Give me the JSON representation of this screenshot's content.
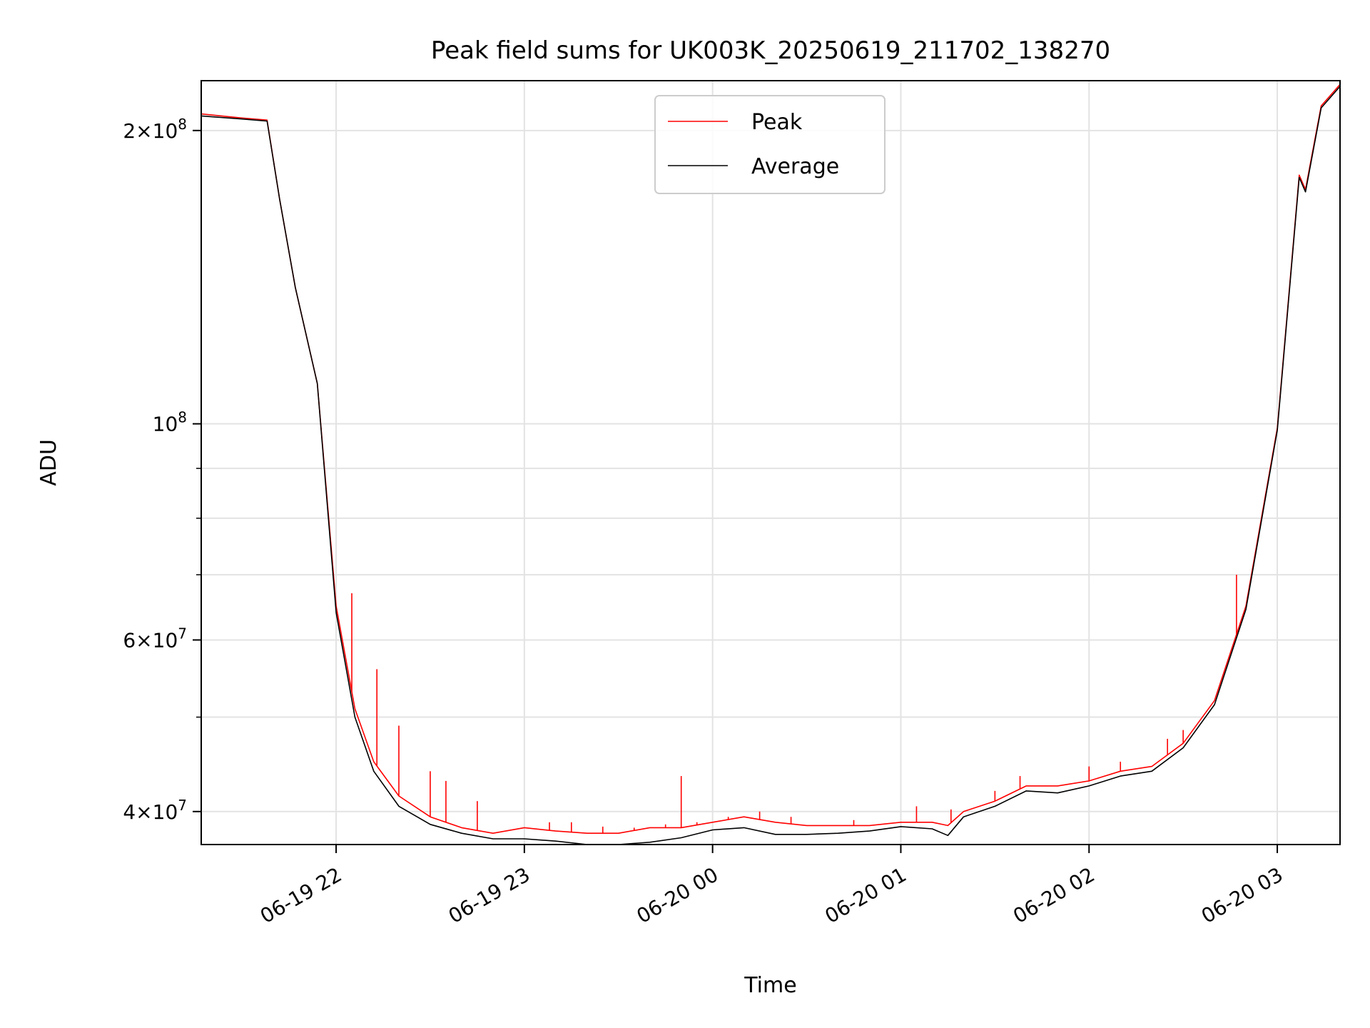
{
  "chart_data": {
    "type": "line",
    "title": "Peak field sums for UK003K_20250619_211702_138270",
    "xlabel": "Time",
    "ylabel": "ADU",
    "yscale": "log",
    "grid": true,
    "legend_position": "top-center",
    "x_ticks": [
      "06-19 22",
      "06-19 23",
      "06-20 00",
      "06-20 01",
      "06-20 02",
      "06-20 03"
    ],
    "x_tick_values": [
      "2025-06-19 22:00",
      "2025-06-19 23:00",
      "2025-06-20 00:00",
      "2025-06-20 01:00",
      "2025-06-20 02:00",
      "2025-06-20 03:00"
    ],
    "xlim": [
      "2025-06-19 21:17",
      "2025-06-20 03:20"
    ],
    "y_ticks": [
      {
        "value": 40000000,
        "mantissa": "4",
        "exp": "7"
      },
      {
        "value": 60000000,
        "mantissa": "6",
        "exp": "7"
      },
      {
        "value": 100000000,
        "mantissa": "",
        "exp": "8"
      },
      {
        "value": 200000000,
        "mantissa": "2",
        "exp": "8"
      }
    ],
    "y_minor_ticks": [
      50000000,
      70000000,
      80000000,
      90000000
    ],
    "ylim": [
      37000000,
      225000000
    ],
    "series": [
      {
        "name": "Peak",
        "color": "#ff0000",
        "x": [
          "2025-06-19 21:17",
          "2025-06-19 21:30",
          "2025-06-19 21:38",
          "2025-06-19 21:42",
          "2025-06-19 21:47",
          "2025-06-19 21:54",
          "2025-06-19 22:00",
          "2025-06-19 22:06",
          "2025-06-19 22:12",
          "2025-06-19 22:20",
          "2025-06-19 22:30",
          "2025-06-19 22:40",
          "2025-06-19 22:50",
          "2025-06-19 23:00",
          "2025-06-19 23:10",
          "2025-06-19 23:20",
          "2025-06-19 23:30",
          "2025-06-19 23:40",
          "2025-06-19 23:50",
          "2025-06-20 00:00",
          "2025-06-20 00:10",
          "2025-06-20 00:20",
          "2025-06-20 00:30",
          "2025-06-20 00:40",
          "2025-06-20 00:50",
          "2025-06-20 01:00",
          "2025-06-20 01:10",
          "2025-06-20 01:15",
          "2025-06-20 01:20",
          "2025-06-20 01:30",
          "2025-06-20 01:40",
          "2025-06-20 01:50",
          "2025-06-20 02:00",
          "2025-06-20 02:10",
          "2025-06-20 02:20",
          "2025-06-20 02:30",
          "2025-06-20 02:40",
          "2025-06-20 02:50",
          "2025-06-20 03:00",
          "2025-06-20 03:07",
          "2025-06-20 03:09",
          "2025-06-20 03:14",
          "2025-06-20 03:20"
        ],
        "values": [
          208000000,
          206000000,
          205000000,
          170000000,
          138000000,
          110000000,
          65000000,
          51000000,
          45000000,
          41500000,
          39500000,
          38500000,
          38000000,
          38500000,
          38200000,
          38000000,
          38000000,
          38500000,
          38500000,
          39000000,
          39500000,
          39000000,
          38700000,
          38700000,
          38700000,
          39000000,
          39000000,
          38700000,
          40000000,
          41000000,
          42500000,
          42500000,
          43000000,
          44000000,
          44500000,
          47000000,
          52000000,
          65000000,
          99000000,
          180000000,
          174000000,
          212000000,
          223000000
        ],
        "spikes": [
          {
            "x": "2025-06-19 22:05",
            "value": 67000000
          },
          {
            "x": "2025-06-19 22:13",
            "value": 56000000
          },
          {
            "x": "2025-06-19 22:20",
            "value": 49000000
          },
          {
            "x": "2025-06-19 22:30",
            "value": 44000000
          },
          {
            "x": "2025-06-19 22:35",
            "value": 43000000
          },
          {
            "x": "2025-06-19 22:45",
            "value": 41000000
          },
          {
            "x": "2025-06-19 23:08",
            "value": 39000000
          },
          {
            "x": "2025-06-19 23:15",
            "value": 39000000
          },
          {
            "x": "2025-06-19 23:25",
            "value": 38600000
          },
          {
            "x": "2025-06-19 23:35",
            "value": 38500000
          },
          {
            "x": "2025-06-19 23:45",
            "value": 38800000
          },
          {
            "x": "2025-06-19 23:50",
            "value": 43500000
          },
          {
            "x": "2025-06-19 23:55",
            "value": 39000000
          },
          {
            "x": "2025-06-20 00:05",
            "value": 39500000
          },
          {
            "x": "2025-06-20 00:15",
            "value": 40000000
          },
          {
            "x": "2025-06-20 00:25",
            "value": 39500000
          },
          {
            "x": "2025-06-20 00:45",
            "value": 39200000
          },
          {
            "x": "2025-06-20 01:05",
            "value": 40500000
          },
          {
            "x": "2025-06-20 01:16",
            "value": 40200000
          },
          {
            "x": "2025-06-20 01:30",
            "value": 42000000
          },
          {
            "x": "2025-06-20 01:38",
            "value": 43500000
          },
          {
            "x": "2025-06-20 02:00",
            "value": 44500000
          },
          {
            "x": "2025-06-20 02:10",
            "value": 45000000
          },
          {
            "x": "2025-06-20 02:25",
            "value": 47500000
          },
          {
            "x": "2025-06-20 02:30",
            "value": 48500000
          },
          {
            "x": "2025-06-20 02:47",
            "value": 70000000
          }
        ]
      },
      {
        "name": "Average",
        "color": "#000000",
        "x": [
          "2025-06-19 21:17",
          "2025-06-19 21:30",
          "2025-06-19 21:38",
          "2025-06-19 21:42",
          "2025-06-19 21:47",
          "2025-06-19 21:54",
          "2025-06-19 22:00",
          "2025-06-19 22:06",
          "2025-06-19 22:12",
          "2025-06-19 22:20",
          "2025-06-19 22:30",
          "2025-06-19 22:40",
          "2025-06-19 22:50",
          "2025-06-19 23:00",
          "2025-06-19 23:10",
          "2025-06-19 23:20",
          "2025-06-19 23:30",
          "2025-06-19 23:40",
          "2025-06-19 23:50",
          "2025-06-20 00:00",
          "2025-06-20 00:10",
          "2025-06-20 00:20",
          "2025-06-20 00:30",
          "2025-06-20 00:40",
          "2025-06-20 00:50",
          "2025-06-20 01:00",
          "2025-06-20 01:10",
          "2025-06-20 01:15",
          "2025-06-20 01:20",
          "2025-06-20 01:30",
          "2025-06-20 01:40",
          "2025-06-20 01:50",
          "2025-06-20 02:00",
          "2025-06-20 02:10",
          "2025-06-20 02:20",
          "2025-06-20 02:30",
          "2025-06-20 02:40",
          "2025-06-20 02:50",
          "2025-06-20 03:00",
          "2025-06-20 03:07",
          "2025-06-20 03:09",
          "2025-06-20 03:14",
          "2025-06-20 03:20"
        ],
        "values": [
          207000000,
          205500000,
          204500000,
          170000000,
          138000000,
          110000000,
          64000000,
          50000000,
          44000000,
          40500000,
          38800000,
          38000000,
          37500000,
          37500000,
          37300000,
          37000000,
          37000000,
          37200000,
          37600000,
          38300000,
          38500000,
          37900000,
          37900000,
          38000000,
          38200000,
          38600000,
          38400000,
          37800000,
          39500000,
          40500000,
          42000000,
          41800000,
          42500000,
          43500000,
          44000000,
          46500000,
          51500000,
          64500000,
          98500000,
          179000000,
          173000000,
          211000000,
          222000000
        ]
      }
    ]
  }
}
